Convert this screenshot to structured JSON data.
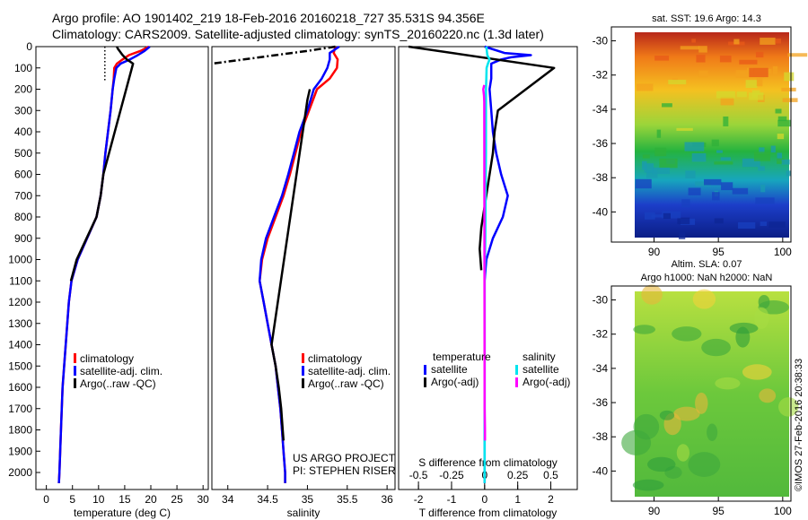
{
  "header": {
    "line1": "Argo profile: AO 1901402_219 18-Feb-2016 20160218_727 35.531S 94.356E",
    "line2": "Climatology: CARS2009. Satellite-adjusted climatology: synTS_20160220.nc (1.3d later)"
  },
  "colors": {
    "climatology": "#ff0000",
    "satellite": "#0000ff",
    "argo": "#000000",
    "salinity_satellite": "#00e5ee",
    "salinity_argo": "#ff00ff"
  },
  "chart_data": [
    {
      "type": "line",
      "xlabel": "temperature (deg C)",
      "ylabel": "",
      "xlim": [
        -2,
        31
      ],
      "ylim": [
        2080,
        0
      ],
      "xticks": [
        0,
        5,
        10,
        15,
        20,
        25,
        30
      ],
      "yticks": [
        0,
        100,
        200,
        300,
        400,
        500,
        600,
        700,
        800,
        900,
        1000,
        1100,
        1200,
        1300,
        1400,
        1500,
        1600,
        1700,
        1800,
        1900,
        2000
      ],
      "legend": [
        "climatology",
        "satellite-adj. clim.",
        "Argo(..raw -QC)"
      ],
      "legend_position": "bottom-center",
      "series": [
        {
          "name": "climatology",
          "color": "#ff0000",
          "depth": [
            0,
            20,
            40,
            60,
            80,
            100,
            150,
            200,
            300,
            400,
            500,
            600,
            700,
            800,
            900,
            1000,
            1100,
            1200,
            1400,
            1600,
            1800,
            2000,
            2050
          ],
          "values": [
            19.6,
            18,
            15.8,
            14.6,
            13.5,
            13.0,
            12.9,
            12.7,
            12.3,
            11.8,
            11.3,
            10.9,
            10.4,
            9.6,
            7.8,
            6.0,
            4.8,
            4.3,
            3.7,
            3.1,
            2.8,
            2.5,
            2.4
          ]
        },
        {
          "name": "satellite-adj. clim.",
          "color": "#0000ff",
          "depth": [
            0,
            20,
            40,
            60,
            80,
            100,
            150,
            200,
            300,
            400,
            500,
            600,
            700,
            800,
            900,
            1000,
            1100,
            1200,
            1400,
            1600,
            1800,
            2000,
            2050
          ],
          "values": [
            19.8,
            18.8,
            17.5,
            16.0,
            14.2,
            13.4,
            13.0,
            12.7,
            12.3,
            11.8,
            11.3,
            10.9,
            10.4,
            9.6,
            7.8,
            6.0,
            4.8,
            4.3,
            3.7,
            3.1,
            2.8,
            2.5,
            2.4
          ]
        },
        {
          "name": "Argo(..raw -QC)",
          "color": "#000000",
          "depth": [
            0,
            10,
            20,
            30,
            40,
            50,
            60,
            70,
            80,
            600,
            700,
            800,
            900,
            1000,
            1100
          ],
          "values": [
            13.5,
            13.7,
            14.0,
            14.3,
            14.6,
            15.0,
            15.4,
            16.0,
            16.6,
            10.9,
            10.4,
            9.6,
            7.7,
            5.8,
            4.7
          ]
        },
        {
          "name": "",
          "color": "#000000",
          "dotted": true,
          "depth": [
            0,
            160
          ],
          "values": [
            11.2,
            11.2
          ]
        }
      ]
    },
    {
      "type": "line",
      "xlabel": "salinity",
      "ylabel": "",
      "xlim": [
        33.8,
        36.1
      ],
      "ylim": [
        2080,
        0
      ],
      "xticks": [
        34,
        34.5,
        35,
        35.5,
        36
      ],
      "legend": [
        "climatology",
        "satellite-adj. clim.",
        "Argo(..raw -QC)"
      ],
      "legend_position": "bottom-right",
      "annotations": [
        "US ARGO PROJECT",
        "PI: STEPHEN RISER"
      ],
      "series": [
        {
          "name": "climatology",
          "color": "#ff0000",
          "depth": [
            0,
            30,
            60,
            100,
            150,
            200,
            300,
            400,
            500,
            600,
            700,
            800,
            900,
            1000,
            1100,
            1200,
            1300,
            1400,
            1500,
            1600,
            1700,
            1800,
            1900,
            2000,
            2050
          ],
          "values": [
            35.35,
            35.33,
            35.38,
            35.37,
            35.28,
            35.12,
            35.02,
            34.92,
            34.85,
            34.78,
            34.7,
            34.6,
            34.5,
            34.43,
            34.4,
            34.45,
            34.5,
            34.55,
            34.6,
            34.63,
            34.66,
            34.68,
            34.7,
            34.72,
            34.72
          ]
        },
        {
          "name": "satellite-adj. clim.",
          "color": "#0000ff",
          "depth": [
            0,
            30,
            60,
            100,
            150,
            200,
            300,
            400,
            500,
            600,
            700,
            800,
            900,
            1000,
            1100,
            1200,
            1300,
            1400,
            1500,
            1600,
            1700,
            1800,
            1900,
            2000,
            2050
          ],
          "values": [
            35.4,
            35.28,
            35.28,
            35.25,
            35.18,
            35.08,
            35.0,
            34.9,
            34.83,
            34.76,
            34.68,
            34.58,
            34.48,
            34.42,
            34.4,
            34.45,
            34.5,
            34.55,
            34.6,
            34.63,
            34.66,
            34.68,
            34.7,
            34.72,
            34.72
          ]
        },
        {
          "name": "Argo(..raw -QC)",
          "color": "#000000",
          "depth": [
            200,
            250,
            300,
            1400,
            1500,
            1600,
            1700,
            1800,
            1850
          ],
          "values": [
            35.03,
            35.0,
            34.98,
            34.55,
            34.6,
            34.64,
            34.67,
            34.69,
            34.7
          ]
        },
        {
          "name": "",
          "color": "#000000",
          "dashed": true,
          "depth": [
            0,
            20,
            40,
            60,
            80
          ],
          "values": [
            35.35,
            35.0,
            34.6,
            34.2,
            33.8
          ]
        }
      ]
    },
    {
      "type": "line",
      "xlabel": "T difference from climatology",
      "xlabel2": "S difference from climatology",
      "ylabel": "",
      "xlim": [
        -2.6,
        2.8
      ],
      "x2lim": [
        -0.65,
        0.7
      ],
      "ylim": [
        2080,
        0
      ],
      "xticks": [
        -2,
        -1,
        0,
        1,
        2
      ],
      "x2ticks": [
        -0.5,
        -0.25,
        0,
        0.25,
        0.5
      ],
      "x2ticklabels": [
        "-0.5",
        "-0.25",
        "0",
        "0.25",
        "0.5"
      ],
      "legend_titles": [
        "temperature",
        "salinity"
      ],
      "legend": [
        "satellite",
        "Argo(-adj)",
        "satellite",
        "Argo(-adj)"
      ],
      "legend_position": "bottom",
      "series": [
        {
          "name": "satellite",
          "group": "temperature",
          "color": "#0000ff",
          "depth": [
            0,
            30,
            40,
            50,
            60,
            80,
            100,
            150,
            200,
            300,
            400,
            500,
            600,
            700,
            800,
            900,
            1000,
            1100,
            1200,
            1300,
            1400,
            1600,
            1800,
            2000,
            2050
          ],
          "values": [
            0.0,
            0.6,
            1.4,
            0.8,
            0.5,
            0.2,
            0.2,
            0.2,
            0.15,
            0.2,
            0.25,
            0.35,
            0.5,
            0.7,
            0.55,
            0.25,
            0.05,
            0.0,
            0.0,
            0.0,
            0.0,
            0.0,
            0.0,
            0.0,
            0.0
          ]
        },
        {
          "name": "Argo(-adj)",
          "group": "temperature",
          "color": "#000000",
          "depth": [
            0,
            100,
            300,
            400,
            500,
            850,
            950,
            1050
          ],
          "values": [
            -2.3,
            2.1,
            0.4,
            0.3,
            0.25,
            -0.1,
            -0.15,
            -0.1
          ]
        },
        {
          "name": "satellite",
          "group": "salinity",
          "color": "#00e5ee",
          "depth": [
            0,
            40,
            60,
            80,
            100,
            150,
            200,
            300,
            500,
            700,
            900,
            1100,
            1300,
            1500,
            1700,
            1900,
            2050
          ],
          "values": [
            0.05,
            0.08,
            0.15,
            0.1,
            0.06,
            0.05,
            0.04,
            0.04,
            0.04,
            0.03,
            0.02,
            0.0,
            0.0,
            0.0,
            0.0,
            0.0,
            0.0
          ]
        },
        {
          "name": "Argo(-adj)",
          "group": "salinity",
          "color": "#ff00ff",
          "depth": [
            180,
            200,
            230,
            260,
            1700,
            1800,
            1850
          ],
          "values": [
            -0.01,
            -0.04,
            -0.02,
            -0.01,
            0.0,
            0.01,
            0.01
          ]
        }
      ]
    }
  ],
  "maps": [
    {
      "type": "heatmap",
      "title": "sat. SST: 19.6 Argo: 14.3",
      "xticks": [
        90,
        95,
        100
      ],
      "yticks": [
        -30,
        -32,
        -34,
        -36,
        -38,
        -40
      ],
      "xlim": [
        88.5,
        100.5
      ],
      "ylim": [
        -41.5,
        -29.5
      ]
    },
    {
      "type": "heatmap",
      "title": "Altim. SLA: 0.07",
      "subtitle": "Argo h1000: NaN h2000: NaN",
      "xticks": [
        90,
        95,
        100
      ],
      "yticks": [
        -30,
        -32,
        -34,
        -36,
        -38,
        -40
      ],
      "xlim": [
        88.5,
        100.5
      ],
      "ylim": [
        -41.5,
        -29.5
      ]
    }
  ],
  "credit": "©IMOS 27-Feb-2016 20:38:33"
}
